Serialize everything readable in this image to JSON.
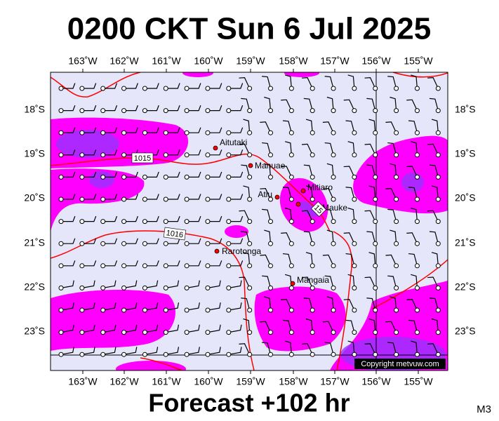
{
  "header": {
    "title": "0200 CKT Sun 6 Jul 2025"
  },
  "footer": {
    "forecast": "Forecast +102 hr",
    "model": "M3"
  },
  "map": {
    "copyright": "Copyright metvuw.com",
    "lon_labels": [
      "163˚W",
      "162˚W",
      "161˚W",
      "160˚W",
      "159˚W",
      "158˚W",
      "157˚W",
      "156˚W",
      "155˚W"
    ],
    "lat_labels": [
      "18˚S",
      "19˚S",
      "20˚S",
      "21˚S",
      "22˚S",
      "23˚S"
    ],
    "places": [
      "Aitutaki",
      "Manuae",
      "Mitiaro",
      "Atiu",
      "Mauke",
      "Rarotonga",
      "Mangaia"
    ],
    "isobar_labels": [
      "1015",
      "1016",
      "15"
    ]
  }
}
